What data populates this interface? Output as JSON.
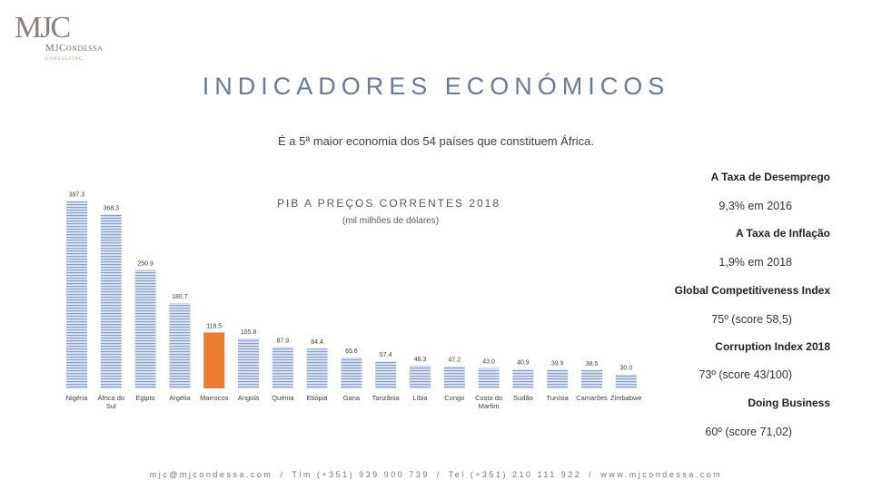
{
  "logo": {
    "mark": "MJC",
    "name": "MJCondessa",
    "tagline": "consulting"
  },
  "page_title": "INDICADORES ECONÓMICOS",
  "subtitle": "É a 5ª maior economia dos 54 países que constituem África.",
  "chart_data": {
    "type": "bar",
    "title": "PIB A PREÇOS CORRENTES 2018",
    "subtitle": "(mil milhões de dólares)",
    "categories": [
      "Nigéria",
      "África do Sul",
      "Egipto",
      "Argélia",
      "Marrocos",
      "Angola",
      "Quénia",
      "Etiópia",
      "Gana",
      "Tanzânia",
      "Líbia",
      "Congo",
      "Costa do Marfim",
      "Sudão",
      "Tunísia",
      "Camarões",
      "Zimbabwe"
    ],
    "values": [
      397.3,
      368.3,
      250.9,
      180.7,
      118.5,
      105.8,
      87.9,
      84.4,
      65.6,
      57.4,
      48.3,
      47.2,
      43.0,
      40.9,
      39.9,
      38.5,
      30.0
    ],
    "value_labels": [
      "397.3",
      "368.3",
      "250.9",
      "180.7",
      "118.5",
      "105.8",
      "87.9",
      "84.4",
      "65.6",
      "57.4",
      "48.3",
      "47.2",
      "43.0",
      "40.9",
      "39.9",
      "38.5",
      "30.0"
    ],
    "highlight": "Marrocos",
    "colors": {
      "default": "#c9d3e6",
      "stripe": "#7a8fbf",
      "highlight": "#ed7d31"
    },
    "ylim": [
      0,
      400
    ],
    "xlabel": "",
    "ylabel": ""
  },
  "indicators": [
    {
      "label": "A Taxa de Desemprego",
      "value": "9,3% em 2016"
    },
    {
      "label": "A Taxa de Inflação",
      "value": "1,9% em 2018"
    },
    {
      "label": "Global Competitiveness Index",
      "value": "75º  (score 58,5)"
    },
    {
      "label": "Corruption Index 2018",
      "value": "73º  (score 43/100)"
    },
    {
      "label": "Doing Business",
      "value": "60º  (score 71,02)"
    }
  ],
  "footer": {
    "email": "mjc@mjcondessa.com",
    "mobile": "Tlm (+351) 939 900 739",
    "phone": "Tel (+351) 210 111 922",
    "website": "www.mjcondessa.com",
    "separator": "/"
  }
}
